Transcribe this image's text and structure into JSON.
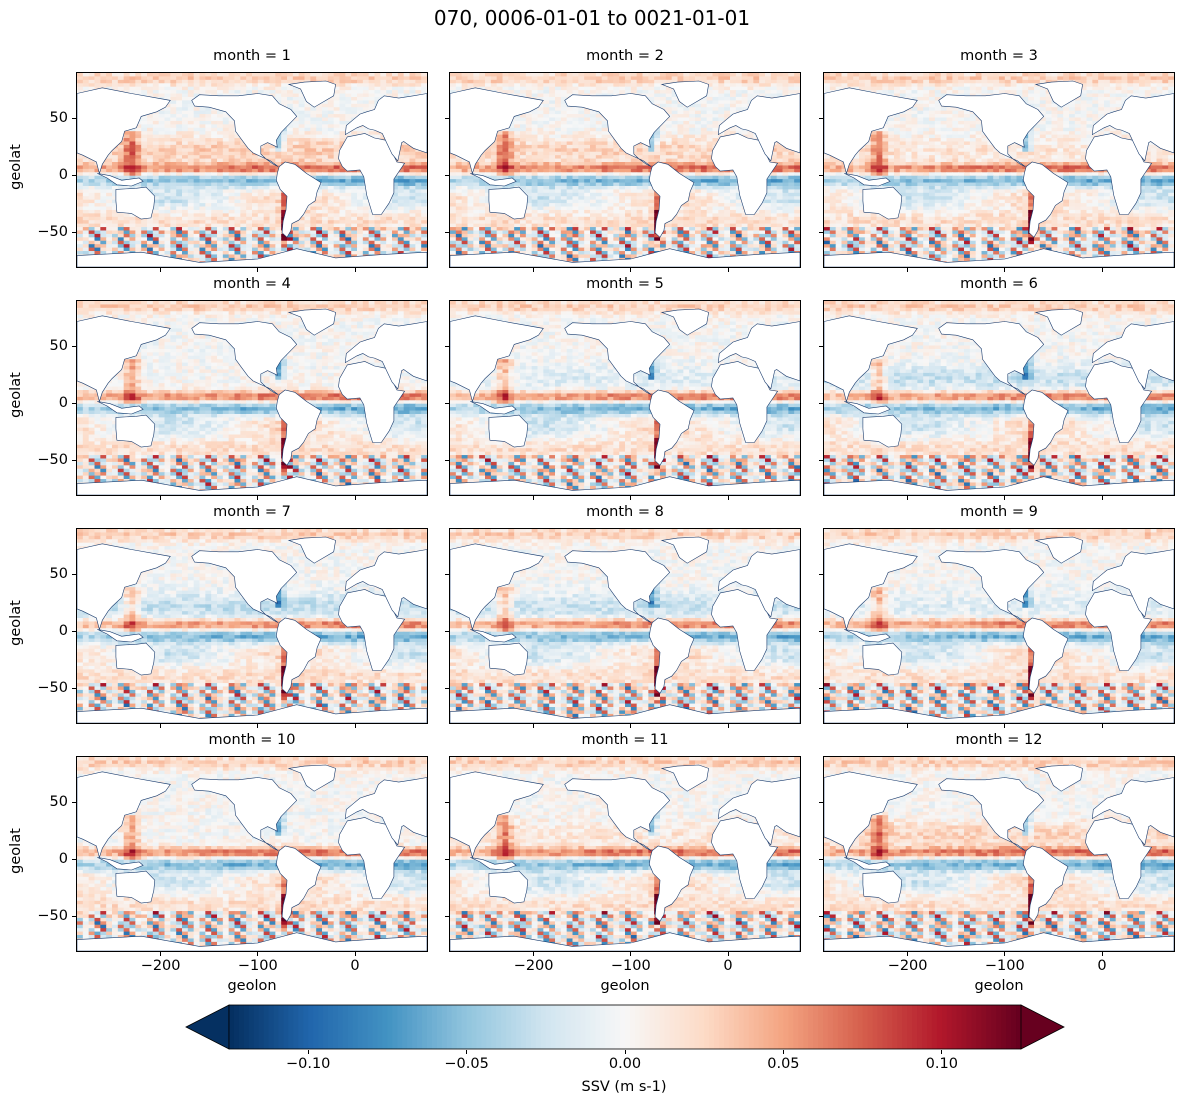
{
  "figure": {
    "title": "070, 0006-01-01 to 0021-01-01",
    "panel_titles": [
      "month = 1",
      "month = 2",
      "month = 3",
      "month = 4",
      "month = 5",
      "month = 6",
      "month = 7",
      "month = 8",
      "month = 9",
      "month = 10",
      "month = 11",
      "month = 12"
    ],
    "ylabel": "geolat",
    "xlabel": "geolon",
    "colorbar_label": "SSV (m s-1)"
  },
  "chart_data": {
    "type": "heatmap",
    "colormap": "RdBu_r",
    "facet": "month",
    "months": [
      1,
      2,
      3,
      4,
      5,
      6,
      7,
      8,
      9,
      10,
      11,
      12
    ],
    "x_name": "geolon",
    "y_name": "geolat",
    "xlim": [
      -286,
      74
    ],
    "ylim": [
      -80,
      90
    ],
    "xticks": [
      -200,
      -100,
      0
    ],
    "xtick_labels": [
      "−200",
      "−100",
      "0"
    ],
    "yticks": [
      -50,
      0,
      50
    ],
    "ytick_labels": [
      "−50",
      "0",
      "50"
    ],
    "colorbar": {
      "vmin": -0.125,
      "vmax": 0.125,
      "ticks": [
        -0.1,
        -0.05,
        0.0,
        0.05,
        0.1
      ],
      "tick_labels": [
        "−0.10",
        "−0.05",
        "0.00",
        "0.05",
        "0.10"
      ],
      "extend": "both",
      "label": "SSV (m s-1)"
    },
    "colors": {
      "dark_blue": "#053061",
      "blue": "#2166ac",
      "light_blue": "#92c5de",
      "white": "#f7f7f7",
      "light_red": "#f4a582",
      "red": "#b2182b",
      "dark_red": "#67001f"
    }
  }
}
